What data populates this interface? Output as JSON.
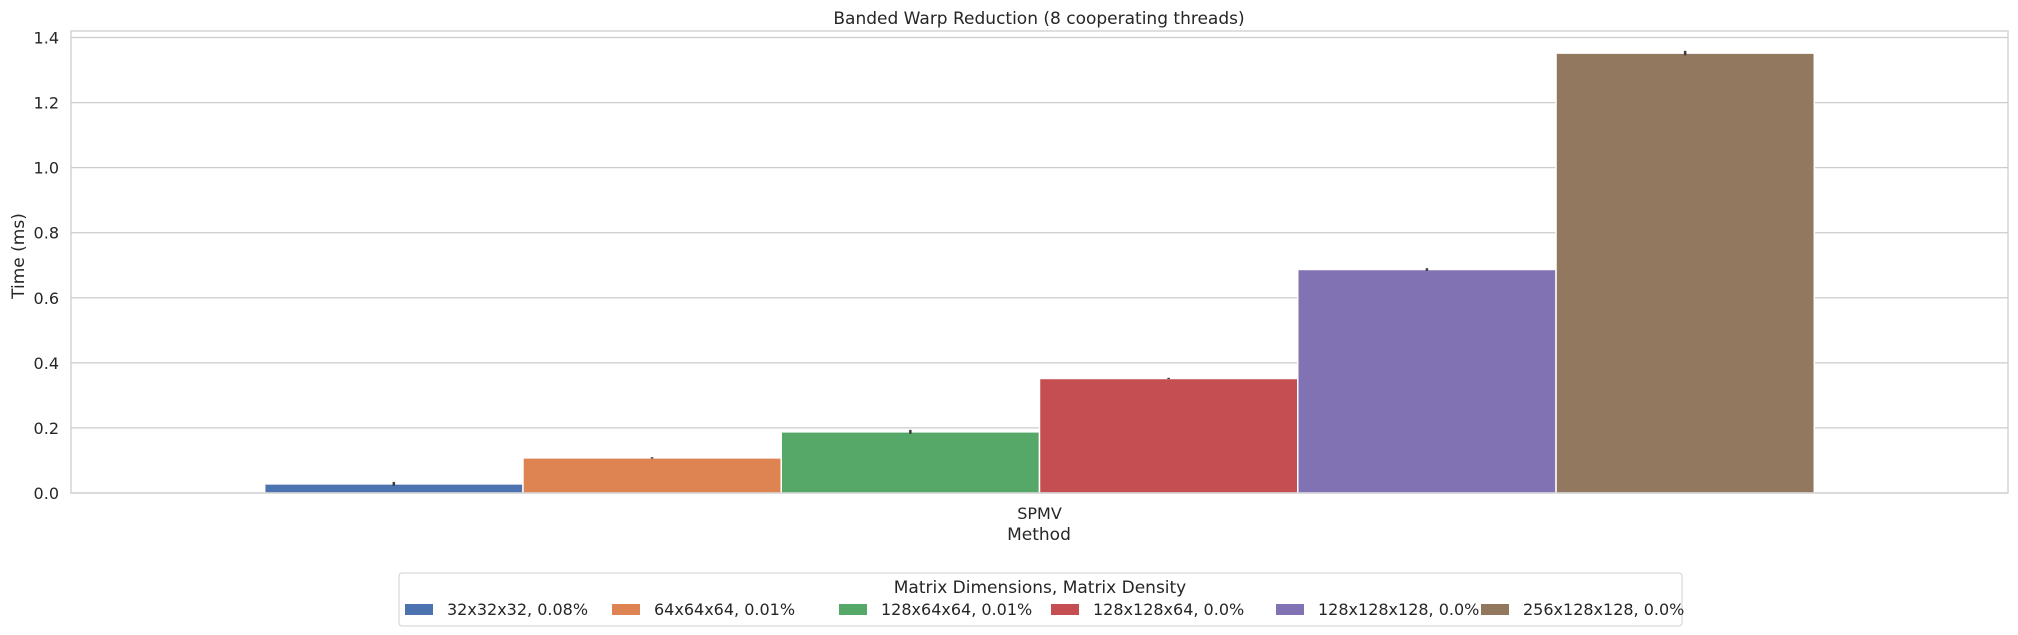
{
  "chart_data": {
    "type": "bar",
    "title": "Banded Warp Reduction (8 cooperating threads)",
    "xlabel": "Method",
    "ylabel": "Time (ms)",
    "categories": [
      "SPMV"
    ],
    "ylim": [
      0,
      1.42
    ],
    "yticks": [
      "0.0",
      "0.2",
      "0.4",
      "0.6",
      "0.8",
      "1.0",
      "1.2",
      "1.4"
    ],
    "grid": true,
    "legend": {
      "title": "Matrix Dimensions, Matrix Density",
      "placement": "bottom-center"
    },
    "series": [
      {
        "name": "32x32x32, 0.08%",
        "values": [
          0.028
        ],
        "error": [
          0.006
        ],
        "color": "#4c72b0"
      },
      {
        "name": "64x64x64, 0.01%",
        "values": [
          0.108
        ],
        "error": [
          0.002
        ],
        "color": "#dd8452"
      },
      {
        "name": "128x64x64, 0.01%",
        "values": [
          0.188
        ],
        "error": [
          0.006
        ],
        "color": "#55a868"
      },
      {
        "name": "128x128x64, 0.0%",
        "values": [
          0.352
        ],
        "error": [
          0.002
        ],
        "color": "#c44e52"
      },
      {
        "name": "128x128x128, 0.0%",
        "values": [
          0.687
        ],
        "error": [
          0.004
        ],
        "color": "#8172b3"
      },
      {
        "name": "256x128x128, 0.0%",
        "values": [
          1.352
        ],
        "error": [
          0.007
        ],
        "color": "#937860"
      }
    ]
  }
}
